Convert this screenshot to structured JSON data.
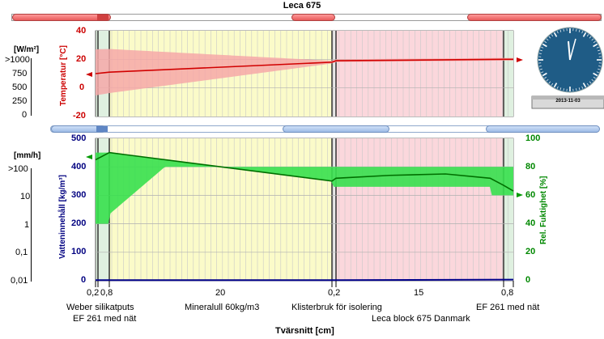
{
  "title": "Leca 675",
  "top_chart": {
    "ylabel": "Temperatur [°C]",
    "y_ticks": [
      "40",
      "20",
      "0",
      "-20"
    ],
    "flux_unit": "[W/m²]",
    "flux_ticks": [
      ">1000",
      "750",
      "500",
      "250",
      "0"
    ]
  },
  "bottom_chart": {
    "ylabel_left": "Vatteninnehåll [kg/m³]",
    "ylabel_right": "Rel. Fuktighet [%]",
    "y_ticks_left": [
      "500",
      "400",
      "300",
      "200",
      "100",
      "0"
    ],
    "y_ticks_right": [
      "100",
      "80",
      "60",
      "40",
      "20",
      "0"
    ],
    "rate_unit": "[mm/h]",
    "rate_ticks": [
      ">100",
      "10",
      "1",
      "0,1",
      "0,01"
    ]
  },
  "x_axis": {
    "label": "Tvärsnitt [cm]",
    "ticks": [
      "0,2",
      "0,8",
      "20",
      "0,2",
      "15",
      "0,8"
    ]
  },
  "layers": [
    {
      "name": "Weber silikatputs",
      "thickness_cm": 0.2,
      "color": "#dff0e0"
    },
    {
      "name": "EF 261 med nät",
      "thickness_cm": 0.8,
      "color": "#dff0e0"
    },
    {
      "name": "Mineralull 60kg/m3",
      "thickness_cm": 20,
      "color": "#fbfbc9"
    },
    {
      "name": "Klisterbruk för isolering",
      "thickness_cm": 0.2,
      "color": "#e8e8e8"
    },
    {
      "name": "Leca block 675 Danmark",
      "thickness_cm": 15,
      "color": "#fbd7dc"
    },
    {
      "name": "EF 261 med nät",
      "thickness_cm": 0.8,
      "color": "#dff0e0"
    }
  ],
  "clock": {
    "date": "2013-11-03"
  },
  "chart_data": [
    {
      "type": "line",
      "series": [
        {
          "x": [
            0,
            1,
            21,
            21.2,
            36.2,
            37
          ],
          "y": [
            10,
            11,
            18,
            19,
            20,
            20
          ]
        }
      ],
      "ylim": [
        -20,
        40
      ]
    },
    {
      "type": "line",
      "series": [
        {
          "x": [
            0,
            1,
            3,
            8,
            13,
            21,
            21.2,
            26,
            31,
            35,
            36.2,
            37
          ],
          "y": [
            85,
            90,
            88,
            83,
            78,
            70,
            72,
            74,
            75,
            72,
            67,
            63
          ]
        },
        {
          "x": [
            0,
            21.2,
            37
          ],
          "y": [
            1,
            1,
            2
          ]
        }
      ],
      "ylim_rh": [
        0,
        100
      ],
      "ylim_w": [
        0,
        500
      ]
    }
  ],
  "colors": {
    "temperature": "#d10000",
    "temperature_band": "#f6a8a8",
    "rh": "#006f00",
    "rh_band": "#37e04e",
    "water": "#00008b",
    "clock_face": "#1f5c86"
  }
}
